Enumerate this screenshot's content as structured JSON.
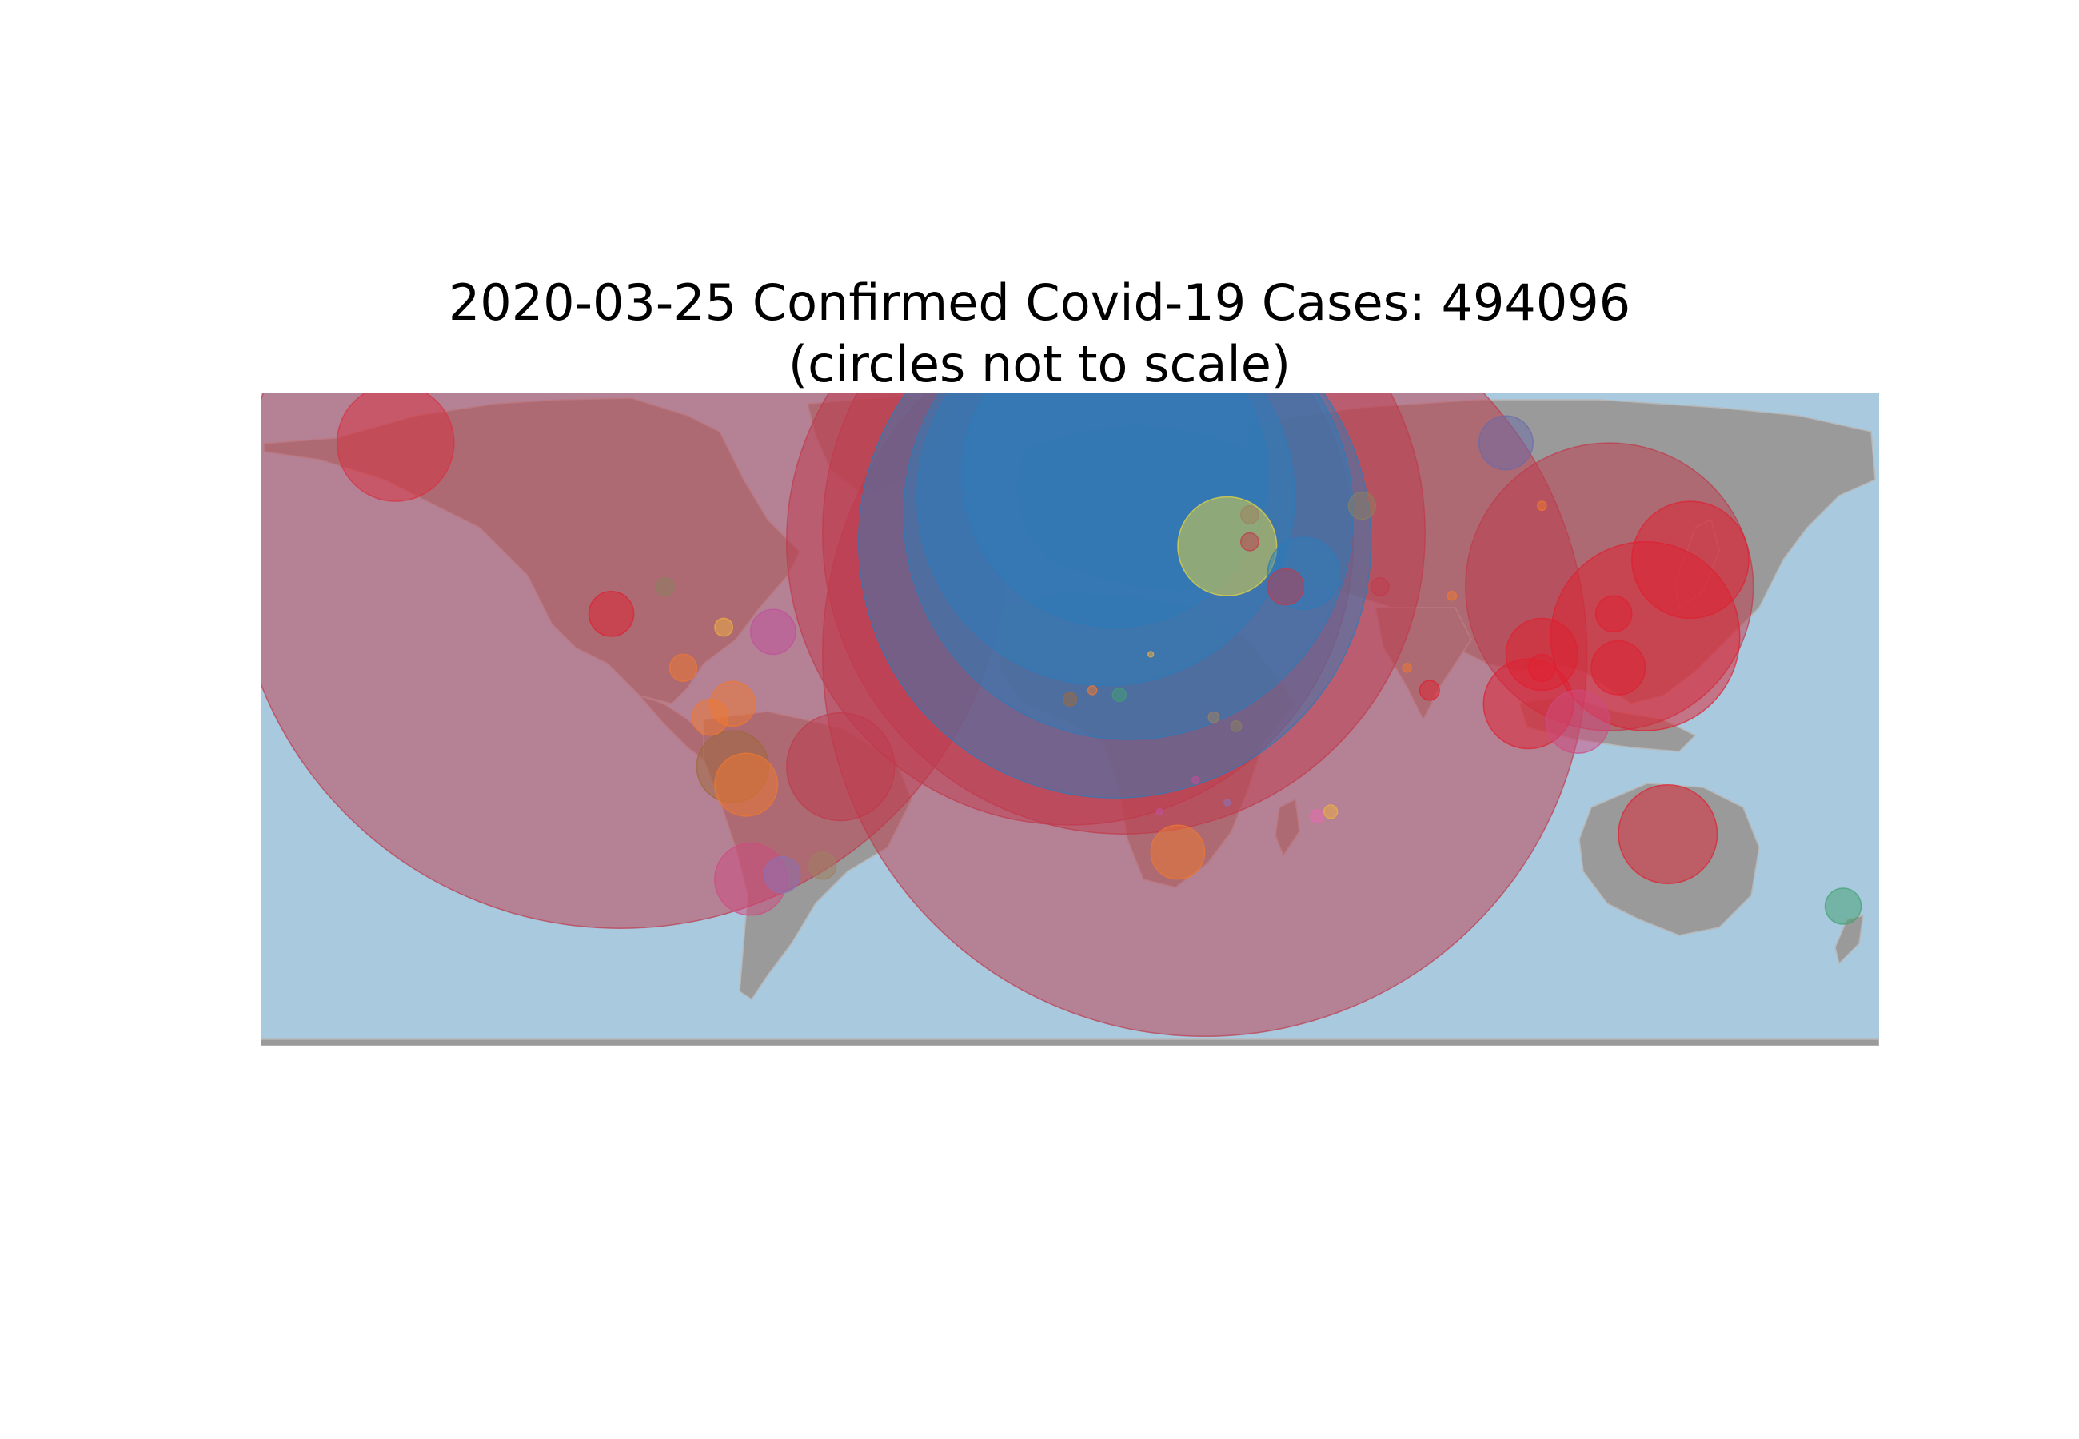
{
  "title": {
    "line1": "2020-03-25 Confirmed Covid-19 Cases: 494096",
    "line2": "(circles not to scale)"
  },
  "map": {
    "projection": "equirectangular",
    "lon_range": [
      -180,
      180
    ],
    "lat_range": [
      -72,
      73
    ],
    "ocean_color": "#a8c9de",
    "land_color": "#9a9a9a"
  },
  "chart_data": {
    "type": "scatter",
    "title": "2020-03-25 Confirmed Covid-19 Cases: 494096",
    "subtitle": "(circles not to scale)",
    "xlabel": "",
    "ylabel": "",
    "xlim": [
      -180,
      180
    ],
    "ylim": [
      -72,
      73
    ],
    "grid": false,
    "points": [
      {
        "lon": -100,
        "lat": 40,
        "r": 86,
        "color": "#c0394b"
      },
      {
        "lon": 30,
        "lat": 15,
        "r": 85,
        "color": "#c0394b"
      },
      {
        "lon": 12,
        "lat": 42,
        "r": 67,
        "color": "#c0394b"
      },
      {
        "lon": 0,
        "lat": 40,
        "r": 63,
        "color": "#c0394b"
      },
      {
        "lon": 10,
        "lat": 40,
        "r": 57,
        "color": "#2b7bb9"
      },
      {
        "lon": 13,
        "lat": 46,
        "r": 50,
        "color": "#2b7bb9"
      },
      {
        "lon": 8,
        "lat": 50,
        "r": 42,
        "color": "#2b7bb9"
      },
      {
        "lon": 10,
        "lat": 55,
        "r": 34,
        "color": "#2b7bb9"
      },
      {
        "lon": 120,
        "lat": 30,
        "r": 32,
        "color": "#c0394b"
      },
      {
        "lon": 128,
        "lat": 19,
        "r": 21,
        "color": "#e02030"
      },
      {
        "lon": -150,
        "lat": 62,
        "r": 13,
        "color": "#d83040"
      },
      {
        "lon": 138,
        "lat": 36,
        "r": 13,
        "color": "#e02030"
      },
      {
        "lon": 133,
        "lat": -25,
        "r": 11,
        "color": "#e02030"
      },
      {
        "lon": 35,
        "lat": 39,
        "r": 11,
        "color": "#e8d840"
      },
      {
        "lon": 102,
        "lat": 4,
        "r": 10,
        "color": "#e02030"
      },
      {
        "lon": 52,
        "lat": 33,
        "r": 8,
        "color": "#2b7bb9"
      },
      {
        "lon": -51,
        "lat": -10,
        "r": 12,
        "color": "#c0394b"
      },
      {
        "lon": -71,
        "lat": -35,
        "r": 8,
        "color": "#d04a80"
      },
      {
        "lon": 105,
        "lat": 15,
        "r": 8,
        "color": "#e02030"
      },
      {
        "lon": 113,
        "lat": 0,
        "r": 7,
        "color": "#d04a80"
      },
      {
        "lon": -75,
        "lat": -10,
        "r": 8,
        "color": "#a06838"
      },
      {
        "lon": -72,
        "lat": -14,
        "r": 7,
        "color": "#f07830"
      },
      {
        "lon": 24,
        "lat": -29,
        "r": 6,
        "color": "#f07830"
      },
      {
        "lon": 122,
        "lat": 12,
        "r": 6,
        "color": "#e02030"
      },
      {
        "lon": 97,
        "lat": 62,
        "r": 6,
        "color": "#6a6aa8"
      },
      {
        "lon": -102,
        "lat": 24,
        "r": 5,
        "color": "#e02030"
      },
      {
        "lon": -75,
        "lat": 4,
        "r": 5,
        "color": "#f07830"
      },
      {
        "lon": -66,
        "lat": 20,
        "r": 5,
        "color": "#c0509a"
      },
      {
        "lon": 48,
        "lat": 30,
        "r": 4,
        "color": "#c0394b"
      },
      {
        "lon": -64,
        "lat": -34,
        "r": 4,
        "color": "#8a70b8"
      },
      {
        "lon": 80,
        "lat": 7,
        "r": 2.2,
        "color": "#e02030"
      },
      {
        "lon": -55,
        "lat": -32,
        "r": 3,
        "color": "#a08060"
      },
      {
        "lon": 65,
        "lat": 48,
        "r": 3,
        "color": "#8a8060"
      },
      {
        "lon": -80,
        "lat": 1,
        "r": 4,
        "color": "#f07830"
      },
      {
        "lon": -86,
        "lat": 12,
        "r": 3,
        "color": "#f07830"
      },
      {
        "lon": -77,
        "lat": 21,
        "r": 2,
        "color": "#f0b040"
      },
      {
        "lon": -90,
        "lat": 30,
        "r": 2,
        "color": "#8a8060"
      },
      {
        "lon": 0,
        "lat": 5,
        "r": 1.5,
        "color": "#a06838"
      },
      {
        "lon": 5,
        "lat": 7,
        "r": 1,
        "color": "#f07830"
      },
      {
        "lon": 11,
        "lat": 6,
        "r": 1.5,
        "color": "#40a070"
      },
      {
        "lon": 32,
        "lat": 1,
        "r": 1.2,
        "color": "#a08060"
      },
      {
        "lon": 37,
        "lat": -1,
        "r": 1.2,
        "color": "#8a8060"
      },
      {
        "lon": 28,
        "lat": -13,
        "r": 0.8,
        "color": "#c0509a"
      },
      {
        "lon": 35,
        "lat": -18,
        "r": 0.7,
        "color": "#8a70b8"
      },
      {
        "lon": 58,
        "lat": -20,
        "r": 1.5,
        "color": "#f0b040"
      },
      {
        "lon": 55,
        "lat": -21,
        "r": 1.5,
        "color": "#e86ab0"
      },
      {
        "lon": 20,
        "lat": -20,
        "r": 0.7,
        "color": "#c0509a"
      },
      {
        "lon": 69,
        "lat": 30,
        "r": 2,
        "color": "#c0394b"
      },
      {
        "lon": 85,
        "lat": 28,
        "r": 1,
        "color": "#f07830"
      },
      {
        "lon": 75,
        "lat": 12,
        "r": 1,
        "color": "#f07830"
      },
      {
        "lon": 18,
        "lat": 15,
        "r": 0.6,
        "color": "#f0b040"
      },
      {
        "lon": 172,
        "lat": -41,
        "r": 4,
        "color": "#40a070"
      },
      {
        "lon": 40,
        "lat": 46,
        "r": 2,
        "color": "#a08060"
      },
      {
        "lon": 40,
        "lat": 40,
        "r": 2,
        "color": "#c0394b"
      },
      {
        "lon": 105,
        "lat": 48,
        "r": 1,
        "color": "#f07830"
      },
      {
        "lon": 121,
        "lat": 24,
        "r": 4,
        "color": "#e02030"
      },
      {
        "lon": 105,
        "lat": 12,
        "r": 3,
        "color": "#e02030"
      }
    ]
  }
}
